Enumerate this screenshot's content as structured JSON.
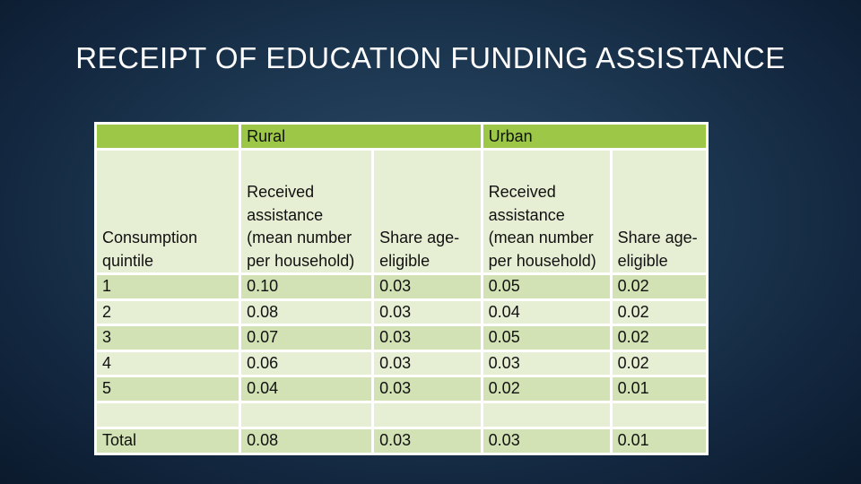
{
  "title": "RECEIPT OF EDUCATION FUNDING ASSISTANCE",
  "table": {
    "group_headers": [
      "",
      "Rural",
      "Urban"
    ],
    "column_headers": [
      "Consumption quintile",
      "Received assistance (mean number per household)",
      "Share age-eligible",
      "Received assistance (mean number per household)",
      "Share age-eligible"
    ],
    "rows": [
      [
        "1",
        "0.10",
        "0.03",
        "0.05",
        "0.02"
      ],
      [
        "2",
        "0.08",
        "0.03",
        "0.04",
        "0.02"
      ],
      [
        "3",
        "0.07",
        "0.03",
        "0.05",
        "0.02"
      ],
      [
        "4",
        "0.06",
        "0.03",
        "0.03",
        "0.02"
      ],
      [
        "5",
        "0.04",
        "0.03",
        "0.02",
        "0.01"
      ]
    ],
    "total_row": [
      "Total",
      "0.08",
      "0.03",
      "0.03",
      "0.01"
    ]
  },
  "colors": {
    "header_green": "#9dc847",
    "cell_light": "#e6efd4",
    "cell_mid": "#d2e2b4",
    "background": "#1c3650"
  }
}
